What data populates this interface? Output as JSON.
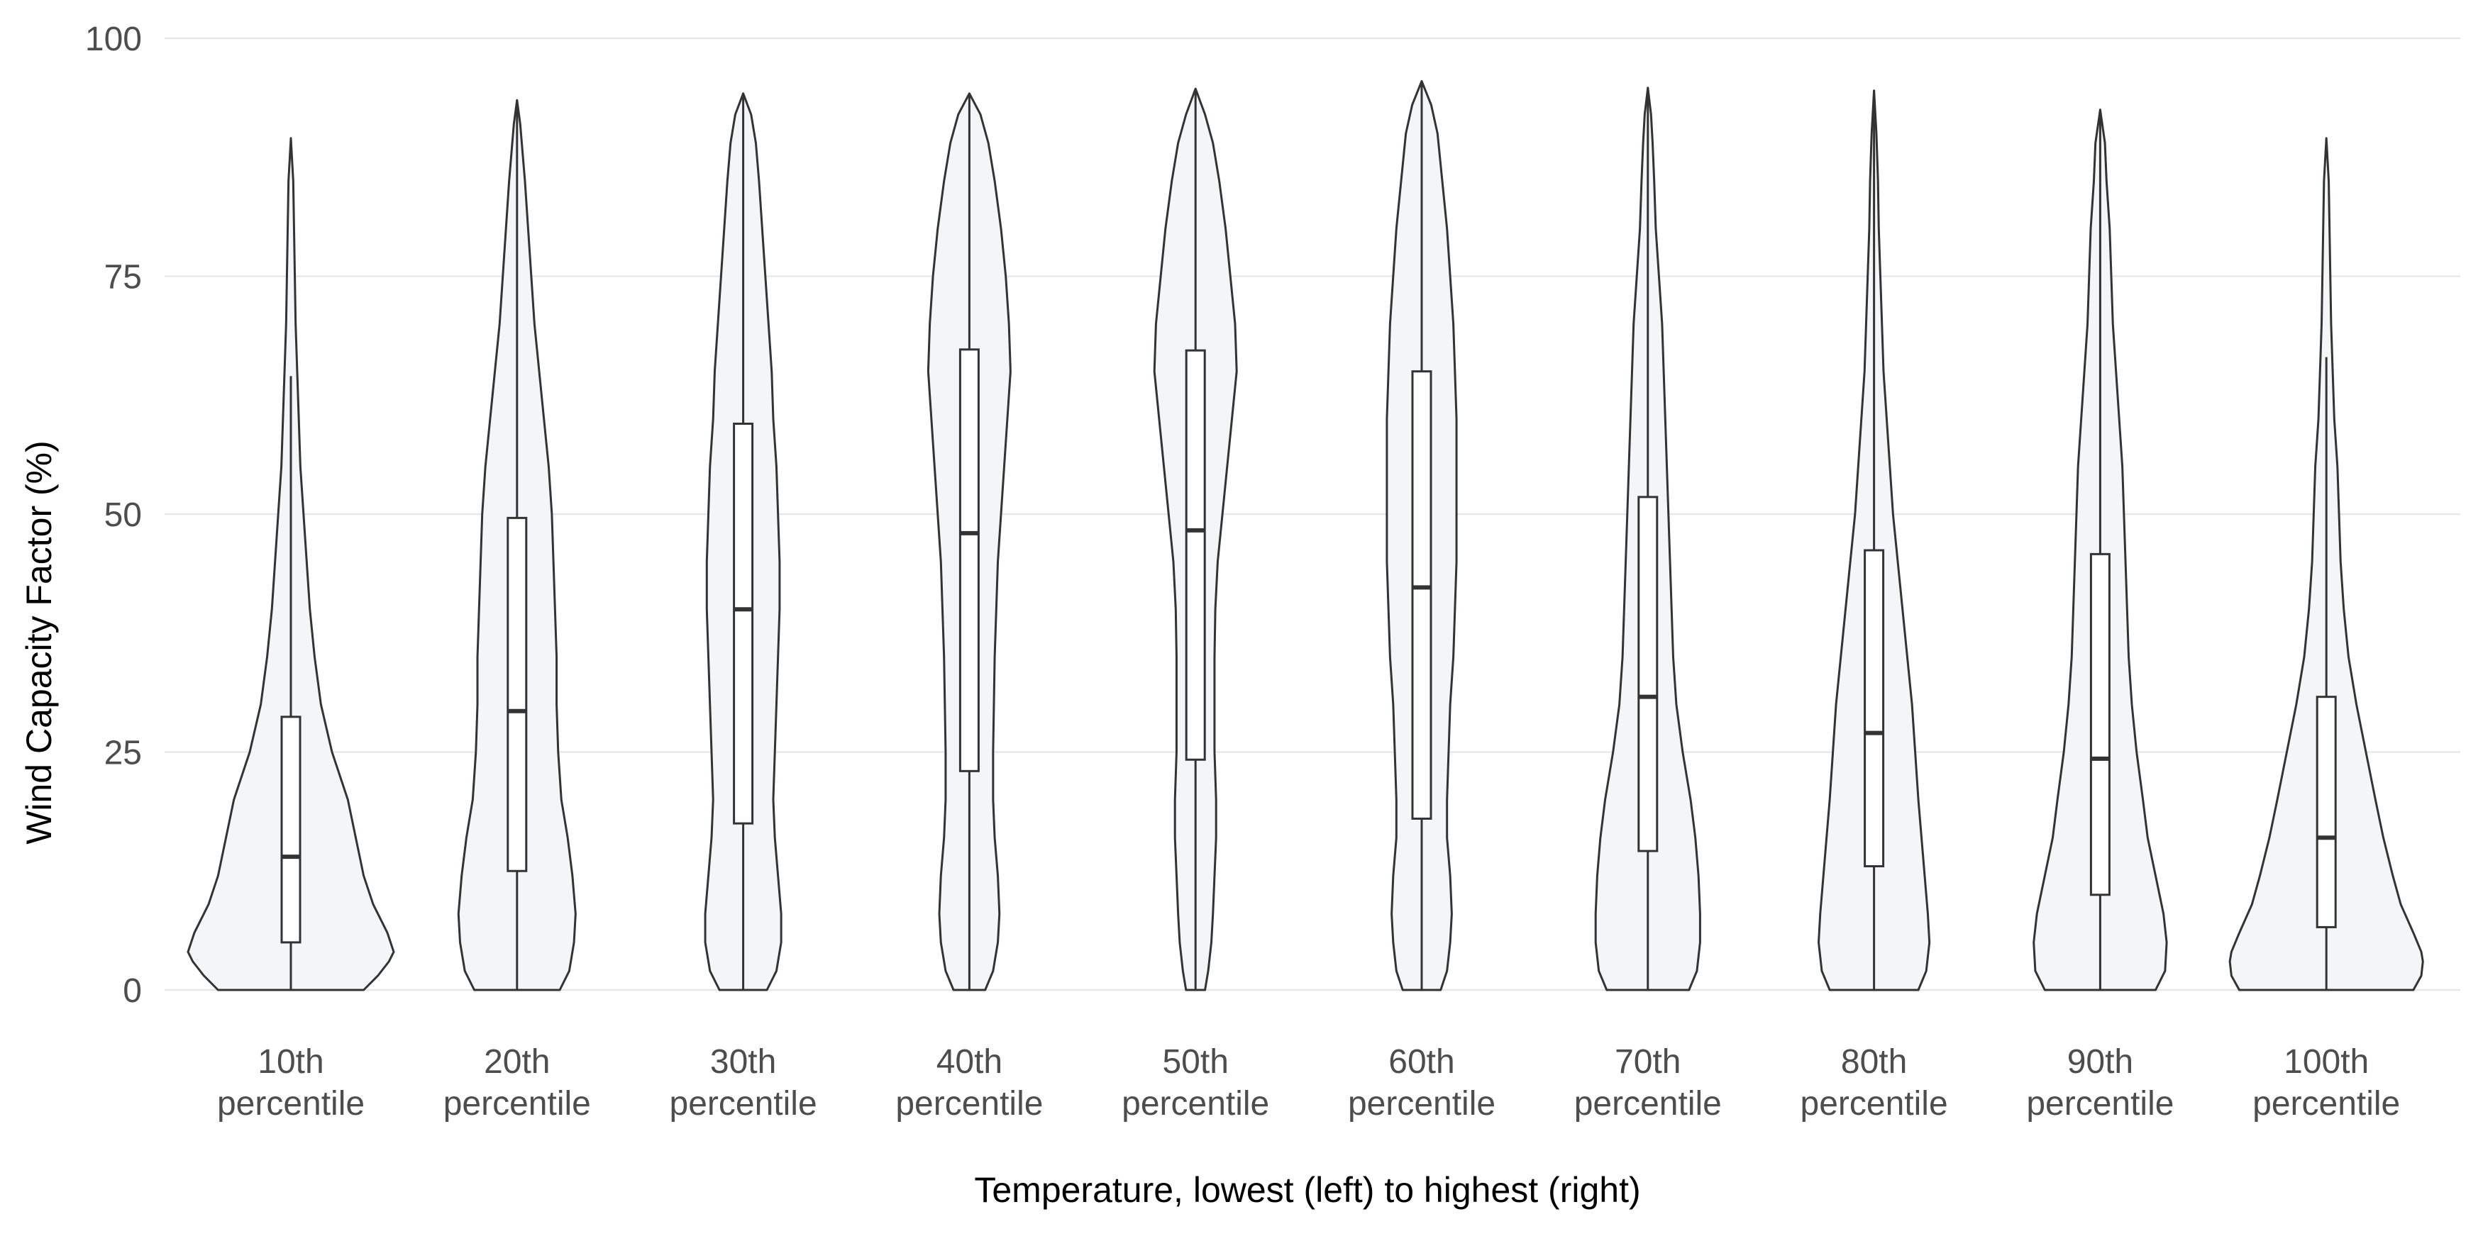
{
  "chart_data": {
    "type": "violin",
    "xlabel": "Temperature, lowest (left) to highest (right)",
    "ylabel": "Wind Capacity Factor (%)",
    "ylim": [
      0,
      100
    ],
    "yticks": [
      "0",
      "25",
      "50",
      "75",
      "100"
    ],
    "grid": true,
    "legend": "none",
    "colors": {
      "fill": "#f3f6f9",
      "stroke": "#333333",
      "grid": "#e6e6e6"
    },
    "categories": [
      {
        "line1": "10th",
        "line2": "percentile",
        "min": 0,
        "q1": 5,
        "median": 14,
        "q3": 28.7,
        "whisker_high": 64.5,
        "max": 89.5,
        "density": [
          [
            0,
            46
          ],
          [
            1.5,
            55
          ],
          [
            3,
            62
          ],
          [
            4,
            65
          ],
          [
            6,
            61
          ],
          [
            9,
            52
          ],
          [
            12,
            46
          ],
          [
            16,
            41
          ],
          [
            20,
            36
          ],
          [
            25,
            26
          ],
          [
            30,
            19
          ],
          [
            35,
            15
          ],
          [
            40,
            12
          ],
          [
            45,
            10
          ],
          [
            50,
            8
          ],
          [
            55,
            6
          ],
          [
            60,
            5
          ],
          [
            65,
            4
          ],
          [
            70,
            3
          ],
          [
            75,
            2.5
          ],
          [
            80,
            2
          ],
          [
            85,
            1.5
          ],
          [
            89.5,
            0
          ]
        ]
      },
      {
        "line1": "20th",
        "line2": "percentile",
        "min": 0,
        "q1": 12.5,
        "median": 29.3,
        "q3": 49.6,
        "whisker_high": 93.5,
        "max": 93.5,
        "density": [
          [
            0,
            27
          ],
          [
            2,
            33
          ],
          [
            5,
            36
          ],
          [
            8,
            37
          ],
          [
            12,
            35
          ],
          [
            16,
            32
          ],
          [
            20,
            28
          ],
          [
            25,
            26
          ],
          [
            30,
            25
          ],
          [
            35,
            25
          ],
          [
            40,
            24
          ],
          [
            45,
            23
          ],
          [
            50,
            22
          ],
          [
            55,
            20
          ],
          [
            60,
            17
          ],
          [
            65,
            14
          ],
          [
            70,
            11
          ],
          [
            75,
            9
          ],
          [
            80,
            7
          ],
          [
            85,
            5
          ],
          [
            88,
            3.5
          ],
          [
            91,
            2
          ],
          [
            93.5,
            0
          ]
        ]
      },
      {
        "line1": "30th",
        "line2": "percentile",
        "min": 0,
        "q1": 17.5,
        "median": 40,
        "q3": 59.5,
        "whisker_high": 94.2,
        "max": 94.2,
        "density": [
          [
            0,
            15
          ],
          [
            2,
            21
          ],
          [
            5,
            24
          ],
          [
            8,
            24
          ],
          [
            12,
            22
          ],
          [
            16,
            20
          ],
          [
            20,
            19
          ],
          [
            25,
            20
          ],
          [
            30,
            21
          ],
          [
            35,
            22
          ],
          [
            40,
            23
          ],
          [
            45,
            23
          ],
          [
            50,
            22
          ],
          [
            55,
            21
          ],
          [
            60,
            19
          ],
          [
            65,
            18
          ],
          [
            70,
            16
          ],
          [
            75,
            14
          ],
          [
            80,
            12
          ],
          [
            85,
            10
          ],
          [
            89,
            8
          ],
          [
            92,
            5
          ],
          [
            94.2,
            0
          ]
        ]
      },
      {
        "line1": "40th",
        "line2": "percentile",
        "min": 0,
        "q1": 23,
        "median": 48,
        "q3": 67.3,
        "whisker_high": 94.2,
        "max": 94.2,
        "density": [
          [
            0,
            10
          ],
          [
            2,
            15
          ],
          [
            5,
            18
          ],
          [
            8,
            19
          ],
          [
            12,
            18
          ],
          [
            16,
            16
          ],
          [
            20,
            15
          ],
          [
            25,
            15
          ],
          [
            30,
            15.5
          ],
          [
            35,
            16
          ],
          [
            40,
            17
          ],
          [
            45,
            18
          ],
          [
            50,
            20
          ],
          [
            55,
            22
          ],
          [
            60,
            24
          ],
          [
            65,
            26
          ],
          [
            70,
            25
          ],
          [
            75,
            23
          ],
          [
            80,
            20
          ],
          [
            85,
            16
          ],
          [
            89,
            12
          ],
          [
            92,
            7
          ],
          [
            94.2,
            0
          ]
        ]
      },
      {
        "line1": "50th",
        "line2": "percentile",
        "min": 0,
        "q1": 24.2,
        "median": 48.3,
        "q3": 67.2,
        "whisker_high": 94.7,
        "max": 94.7,
        "density": [
          [
            0,
            6
          ],
          [
            2,
            8
          ],
          [
            5,
            10
          ],
          [
            8,
            11
          ],
          [
            12,
            12
          ],
          [
            16,
            13
          ],
          [
            20,
            13
          ],
          [
            25,
            12
          ],
          [
            30,
            12
          ],
          [
            35,
            12
          ],
          [
            40,
            12.5
          ],
          [
            45,
            14
          ],
          [
            50,
            17
          ],
          [
            55,
            20
          ],
          [
            60,
            23
          ],
          [
            65,
            26
          ],
          [
            70,
            25
          ],
          [
            75,
            22
          ],
          [
            80,
            19
          ],
          [
            85,
            15
          ],
          [
            89,
            11
          ],
          [
            92,
            6
          ],
          [
            94.7,
            0
          ]
        ]
      },
      {
        "line1": "60th",
        "line2": "percentile",
        "min": 0,
        "q1": 18,
        "median": 42.3,
        "q3": 65,
        "whisker_high": 95.5,
        "max": 95.5,
        "density": [
          [
            0,
            12
          ],
          [
            2,
            16
          ],
          [
            5,
            18
          ],
          [
            8,
            19
          ],
          [
            12,
            18
          ],
          [
            16,
            16
          ],
          [
            20,
            16
          ],
          [
            25,
            17
          ],
          [
            30,
            18
          ],
          [
            35,
            20
          ],
          [
            40,
            21
          ],
          [
            45,
            22
          ],
          [
            50,
            22
          ],
          [
            55,
            22
          ],
          [
            60,
            22
          ],
          [
            65,
            21
          ],
          [
            70,
            20
          ],
          [
            75,
            18
          ],
          [
            80,
            16
          ],
          [
            85,
            13
          ],
          [
            90,
            10
          ],
          [
            93,
            6
          ],
          [
            95.5,
            0
          ]
        ]
      },
      {
        "line1": "70th",
        "line2": "percentile",
        "min": 0,
        "q1": 14.6,
        "median": 30.8,
        "q3": 51.8,
        "whisker_high": 94.8,
        "max": 94.8,
        "density": [
          [
            0,
            26
          ],
          [
            2,
            31
          ],
          [
            5,
            33
          ],
          [
            8,
            33
          ],
          [
            12,
            32
          ],
          [
            16,
            30
          ],
          [
            20,
            27
          ],
          [
            25,
            22
          ],
          [
            30,
            18
          ],
          [
            35,
            16
          ],
          [
            40,
            15
          ],
          [
            45,
            14
          ],
          [
            50,
            13
          ],
          [
            55,
            12
          ],
          [
            60,
            11
          ],
          [
            65,
            10
          ],
          [
            70,
            9
          ],
          [
            75,
            7
          ],
          [
            80,
            5
          ],
          [
            85,
            4
          ],
          [
            89,
            3
          ],
          [
            92,
            2
          ],
          [
            94.8,
            0
          ]
        ]
      },
      {
        "line1": "80th",
        "line2": "percentile",
        "min": 0,
        "q1": 13,
        "median": 27,
        "q3": 46.2,
        "whisker_high": 94.5,
        "max": 94.5,
        "density": [
          [
            0,
            28
          ],
          [
            2,
            33
          ],
          [
            5,
            35
          ],
          [
            8,
            34
          ],
          [
            12,
            32
          ],
          [
            16,
            30
          ],
          [
            20,
            28
          ],
          [
            25,
            26
          ],
          [
            30,
            24
          ],
          [
            35,
            21
          ],
          [
            40,
            18
          ],
          [
            45,
            15
          ],
          [
            50,
            12
          ],
          [
            55,
            10
          ],
          [
            60,
            8
          ],
          [
            65,
            6
          ],
          [
            70,
            5
          ],
          [
            75,
            4
          ],
          [
            80,
            3
          ],
          [
            85,
            2.5
          ],
          [
            90,
            1.5
          ],
          [
            94.5,
            0
          ]
        ]
      },
      {
        "line1": "90th",
        "line2": "percentile",
        "min": 0,
        "q1": 10,
        "median": 24.3,
        "q3": 45.8,
        "whisker_high": 92.5,
        "max": 92.5,
        "density": [
          [
            0,
            35
          ],
          [
            2,
            41
          ],
          [
            5,
            42
          ],
          [
            8,
            40
          ],
          [
            12,
            35
          ],
          [
            16,
            30
          ],
          [
            20,
            27
          ],
          [
            25,
            23
          ],
          [
            30,
            20
          ],
          [
            35,
            18
          ],
          [
            40,
            17
          ],
          [
            45,
            16
          ],
          [
            50,
            15
          ],
          [
            55,
            14
          ],
          [
            60,
            12
          ],
          [
            65,
            10
          ],
          [
            70,
            8
          ],
          [
            75,
            7
          ],
          [
            80,
            6
          ],
          [
            85,
            4
          ],
          [
            89,
            3
          ],
          [
            92.5,
            0
          ]
        ]
      },
      {
        "line1": "100th",
        "line2": "percentile",
        "min": 0,
        "q1": 6.6,
        "median": 16,
        "q3": 30.8,
        "whisker_high": 66.5,
        "max": 89.5,
        "density": [
          [
            0,
            55
          ],
          [
            1.5,
            60
          ],
          [
            3,
            61
          ],
          [
            4,
            60
          ],
          [
            6,
            55
          ],
          [
            9,
            47
          ],
          [
            12,
            42
          ],
          [
            16,
            36
          ],
          [
            20,
            31
          ],
          [
            25,
            25
          ],
          [
            30,
            19
          ],
          [
            35,
            14
          ],
          [
            40,
            11
          ],
          [
            45,
            9
          ],
          [
            50,
            8
          ],
          [
            55,
            7
          ],
          [
            60,
            5
          ],
          [
            65,
            4
          ],
          [
            70,
            3
          ],
          [
            75,
            2.5
          ],
          [
            80,
            2
          ],
          [
            85,
            1.5
          ],
          [
            89.5,
            0
          ]
        ]
      }
    ]
  }
}
